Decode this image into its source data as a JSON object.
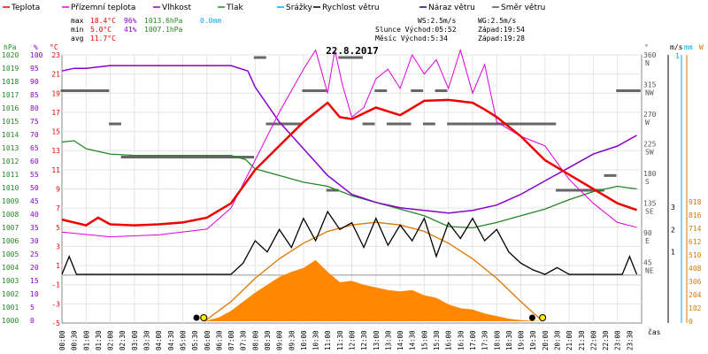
{
  "chart_data": {
    "type": "line",
    "title": "22.8.2017",
    "legend": [
      {
        "name": "Teplota",
        "color": "#ee0000"
      },
      {
        "name": "Přízemní teplota",
        "color": "#dd00dd"
      },
      {
        "name": "Vlhkost",
        "color": "#8800cc"
      },
      {
        "name": "Tlak",
        "color": "#228822"
      },
      {
        "name": "Srážky",
        "color": "#00aaee"
      },
      {
        "name": "Rychlost větru",
        "color": "#000000"
      },
      {
        "name": "Náraz větru",
        "color": "#220088"
      },
      {
        "name": "Směr větru",
        "color": "#555555"
      }
    ],
    "stats": {
      "rows": [
        {
          "label": "max",
          "t": "18.4°C",
          "h": "96%",
          "p": "1013.6hPa",
          "r": "0.0mm"
        },
        {
          "label": "min",
          "t": "5.0°C",
          "h": "41%",
          "p": "1007.1hPa",
          "r": ""
        },
        {
          "label": "avg",
          "t": "11.7°C",
          "h": "",
          "p": "",
          "r": ""
        }
      ],
      "wind": [
        "WS:2.5m/s",
        "WG:2.5m/s"
      ],
      "sun": [
        "Slunce Východ:05:52",
        "Západ:19:54"
      ],
      "moon": [
        "Měsíc Východ:5:34",
        "Západ:19:28"
      ]
    },
    "axes": {
      "hpa_label": "hPa",
      "pct_label": "%",
      "temp_label": "°C",
      "dir_label": "°",
      "ms_label": "m/s",
      "mm_label": "mm",
      "w_label": "W",
      "x_label": "čas",
      "hpa_ticks": [
        "1020",
        "1019",
        "1018",
        "1017",
        "1016",
        "1015",
        "1014",
        "1013",
        "1012",
        "1011",
        "1010",
        "1009",
        "1008",
        "1007",
        "1006",
        "1005",
        "1004",
        "1003",
        "1002",
        "1001",
        "1000"
      ],
      "pct_ticks": [
        "100",
        "95",
        "90",
        "85",
        "80",
        "75",
        "70",
        "65",
        "60",
        "55",
        "50",
        "45",
        "40",
        "35",
        "30",
        "25",
        "20",
        "15",
        "10",
        "5",
        "0"
      ],
      "temp_ticks": [
        "23",
        "21",
        "19",
        "17",
        "15",
        "13",
        "11",
        "9",
        "7",
        "5",
        "3",
        "1",
        "-1",
        "-3",
        "-5"
      ],
      "dir_ticks": [
        {
          "deg": "360",
          "dir": "N"
        },
        {
          "deg": "315",
          "dir": "NW"
        },
        {
          "deg": "270",
          "dir": "W"
        },
        {
          "deg": "225",
          "dir": "SW"
        },
        {
          "deg": "180",
          "dir": "S"
        },
        {
          "deg": "135",
          "dir": "SE"
        },
        {
          "deg": "90",
          "dir": "E"
        },
        {
          "deg": "45",
          "dir": "NE"
        }
      ],
      "ms_ticks": [
        "3",
        "2",
        "1"
      ],
      "mm_ticks": [
        "1"
      ],
      "w_ticks": [
        "918",
        "816",
        "714",
        "612",
        "510",
        "408",
        "306",
        "204",
        "102",
        "0"
      ],
      "x_ticks": [
        "00:00",
        "00:30",
        "01:00",
        "01:30",
        "02:00",
        "02:30",
        "03:00",
        "03:30",
        "04:00",
        "04:30",
        "05:00",
        "05:30",
        "06:00",
        "06:30",
        "07:00",
        "07:30",
        "08:00",
        "08:30",
        "09:00",
        "09:30",
        "10:00",
        "10:30",
        "11:00",
        "11:30",
        "12:00",
        "12:30",
        "13:00",
        "13:30",
        "14:00",
        "14:30",
        "15:00",
        "15:30",
        "16:00",
        "16:30",
        "17:00",
        "17:30",
        "18:00",
        "18:30",
        "19:00",
        "19:30",
        "20:00",
        "20:30",
        "21:00",
        "21:30",
        "22:00",
        "22:30",
        "23:00",
        "23:30"
      ]
    },
    "temperature": [
      [
        0,
        5.8
      ],
      [
        1,
        5.2
      ],
      [
        1.5,
        6.0
      ],
      [
        2,
        5.3
      ],
      [
        3,
        5.2
      ],
      [
        4,
        5.3
      ],
      [
        5,
        5.5
      ],
      [
        6,
        6.0
      ],
      [
        7,
        7.5
      ],
      [
        8,
        11.0
      ],
      [
        9,
        13.5
      ],
      [
        10,
        16.0
      ],
      [
        11,
        18.0
      ],
      [
        11.5,
        16.5
      ],
      [
        12,
        16.3
      ],
      [
        13,
        17.5
      ],
      [
        14,
        16.7
      ],
      [
        15,
        18.2
      ],
      [
        16,
        18.3
      ],
      [
        17,
        18.0
      ],
      [
        17.5,
        17.3
      ],
      [
        18,
        16.5
      ],
      [
        19,
        14.5
      ],
      [
        20,
        12.0
      ],
      [
        21,
        10.5
      ],
      [
        22,
        9.0
      ],
      [
        23,
        7.5
      ],
      [
        23.8,
        6.8
      ]
    ],
    "ground_temp": [
      [
        0,
        4.5
      ],
      [
        2,
        4.0
      ],
      [
        4,
        4.2
      ],
      [
        6,
        4.8
      ],
      [
        7,
        7.0
      ],
      [
        8,
        12.0
      ],
      [
        9,
        17.0
      ],
      [
        10,
        21.5
      ],
      [
        10.5,
        23.5
      ],
      [
        11,
        19.0
      ],
      [
        11.3,
        23.5
      ],
      [
        11.6,
        20
      ],
      [
        12,
        16.5
      ],
      [
        12.5,
        17.5
      ],
      [
        13,
        20.5
      ],
      [
        13.5,
        21.5
      ],
      [
        14,
        19.5
      ],
      [
        14.5,
        23.0
      ],
      [
        15,
        21.0
      ],
      [
        15.5,
        22.5
      ],
      [
        16,
        19.5
      ],
      [
        16.5,
        23.5
      ],
      [
        17,
        19.0
      ],
      [
        17.5,
        22.0
      ],
      [
        18,
        16.0
      ],
      [
        19,
        14.5
      ],
      [
        20,
        13.5
      ],
      [
        21,
        10.0
      ],
      [
        22,
        7.5
      ],
      [
        23,
        5.5
      ],
      [
        23.8,
        5.0
      ]
    ],
    "humidity": [
      [
        0,
        94
      ],
      [
        0.5,
        95
      ],
      [
        1,
        95
      ],
      [
        2,
        96
      ],
      [
        3,
        96
      ],
      [
        4,
        96
      ],
      [
        5,
        96
      ],
      [
        6,
        96
      ],
      [
        7,
        96
      ],
      [
        7.7,
        94
      ],
      [
        8,
        88
      ],
      [
        9,
        75
      ],
      [
        10,
        65
      ],
      [
        11,
        55
      ],
      [
        12,
        48
      ],
      [
        13,
        45
      ],
      [
        14,
        43
      ],
      [
        15,
        42
      ],
      [
        16,
        41
      ],
      [
        17,
        42
      ],
      [
        18,
        44
      ],
      [
        19,
        48
      ],
      [
        20,
        53
      ],
      [
        21,
        58
      ],
      [
        22,
        63
      ],
      [
        23,
        66
      ],
      [
        23.8,
        70
      ]
    ],
    "pressure": [
      [
        0,
        1013.5
      ],
      [
        0.5,
        1013.6
      ],
      [
        1,
        1013.0
      ],
      [
        2,
        1012.6
      ],
      [
        3,
        1012.5
      ],
      [
        5,
        1012.5
      ],
      [
        7,
        1012.5
      ],
      [
        7.6,
        1012.2
      ],
      [
        8,
        1011.5
      ],
      [
        9,
        1011.0
      ],
      [
        10,
        1010.5
      ],
      [
        11,
        1010.2
      ],
      [
        12,
        1009.5
      ],
      [
        13,
        1009.0
      ],
      [
        14,
        1008.5
      ],
      [
        15,
        1008.0
      ],
      [
        16,
        1007.2
      ],
      [
        17,
        1007.1
      ],
      [
        18,
        1007.5
      ],
      [
        19,
        1008.0
      ],
      [
        20,
        1008.5
      ],
      [
        21,
        1009.2
      ],
      [
        22,
        1009.8
      ],
      [
        23,
        1010.2
      ],
      [
        23.8,
        1010.0
      ]
    ],
    "wind_speed": [
      [
        0,
        0
      ],
      [
        0.3,
        0.8
      ],
      [
        0.6,
        0
      ],
      [
        7,
        0
      ],
      [
        7.5,
        0.5
      ],
      [
        8,
        1.5
      ],
      [
        8.5,
        1.0
      ],
      [
        9,
        2.0
      ],
      [
        9.5,
        1.2
      ],
      [
        10,
        2.5
      ],
      [
        10.5,
        1.5
      ],
      [
        11,
        2.8
      ],
      [
        11.5,
        2.0
      ],
      [
        12,
        2.3
      ],
      [
        12.5,
        1.2
      ],
      [
        13,
        2.5
      ],
      [
        13.5,
        1.3
      ],
      [
        14,
        2.2
      ],
      [
        14.5,
        1.5
      ],
      [
        15,
        2.5
      ],
      [
        15.5,
        0.8
      ],
      [
        16,
        2.3
      ],
      [
        16.5,
        1.6
      ],
      [
        17,
        2.5
      ],
      [
        17.5,
        1.5
      ],
      [
        18,
        2.0
      ],
      [
        18.5,
        1.0
      ],
      [
        19,
        0.5
      ],
      [
        19.5,
        0.2
      ],
      [
        20,
        0
      ],
      [
        20.5,
        0.3
      ],
      [
        21,
        0
      ],
      [
        23.2,
        0
      ],
      [
        23.5,
        0.8
      ],
      [
        23.8,
        0
      ]
    ],
    "wind_dir_deg": [
      315,
      315,
      315,
      315,
      270,
      225,
      225,
      225,
      225,
      225,
      225,
      225,
      225,
      225,
      225,
      225,
      360,
      270,
      270,
      270,
      315,
      315,
      180,
      360,
      360,
      270,
      315,
      270,
      270,
      315,
      270,
      315,
      270,
      270,
      270,
      270,
      270,
      270,
      270,
      270,
      270,
      180,
      180,
      180,
      180,
      200,
      315,
      315
    ],
    "solar_w": [
      [
        5.9,
        0
      ],
      [
        6.5,
        30
      ],
      [
        7,
        80
      ],
      [
        7.5,
        150
      ],
      [
        8,
        220
      ],
      [
        8.5,
        280
      ],
      [
        9,
        340
      ],
      [
        9.5,
        380
      ],
      [
        10,
        410
      ],
      [
        10.5,
        470
      ],
      [
        11,
        380
      ],
      [
        11.5,
        300
      ],
      [
        12,
        310
      ],
      [
        12.5,
        280
      ],
      [
        13,
        260
      ],
      [
        13.5,
        240
      ],
      [
        14,
        230
      ],
      [
        14.5,
        240
      ],
      [
        15,
        200
      ],
      [
        15.5,
        180
      ],
      [
        16,
        130
      ],
      [
        16.5,
        100
      ],
      [
        17,
        90
      ],
      [
        17.5,
        60
      ],
      [
        18,
        40
      ],
      [
        18.5,
        20
      ],
      [
        19,
        8
      ],
      [
        19.9,
        0
      ]
    ],
    "solar_theory_w": [
      [
        5.9,
        0
      ],
      [
        7,
        150
      ],
      [
        8,
        330
      ],
      [
        9,
        480
      ],
      [
        10,
        600
      ],
      [
        11,
        690
      ],
      [
        12,
        740
      ],
      [
        13,
        760
      ],
      [
        14,
        740
      ],
      [
        15,
        690
      ],
      [
        16,
        600
      ],
      [
        17,
        480
      ],
      [
        18,
        330
      ],
      [
        19,
        150
      ],
      [
        19.9,
        0
      ]
    ],
    "markers": {
      "sunrise": 5.87,
      "sunset": 19.9,
      "moonrise": 5.57,
      "moonset": 19.47
    }
  }
}
